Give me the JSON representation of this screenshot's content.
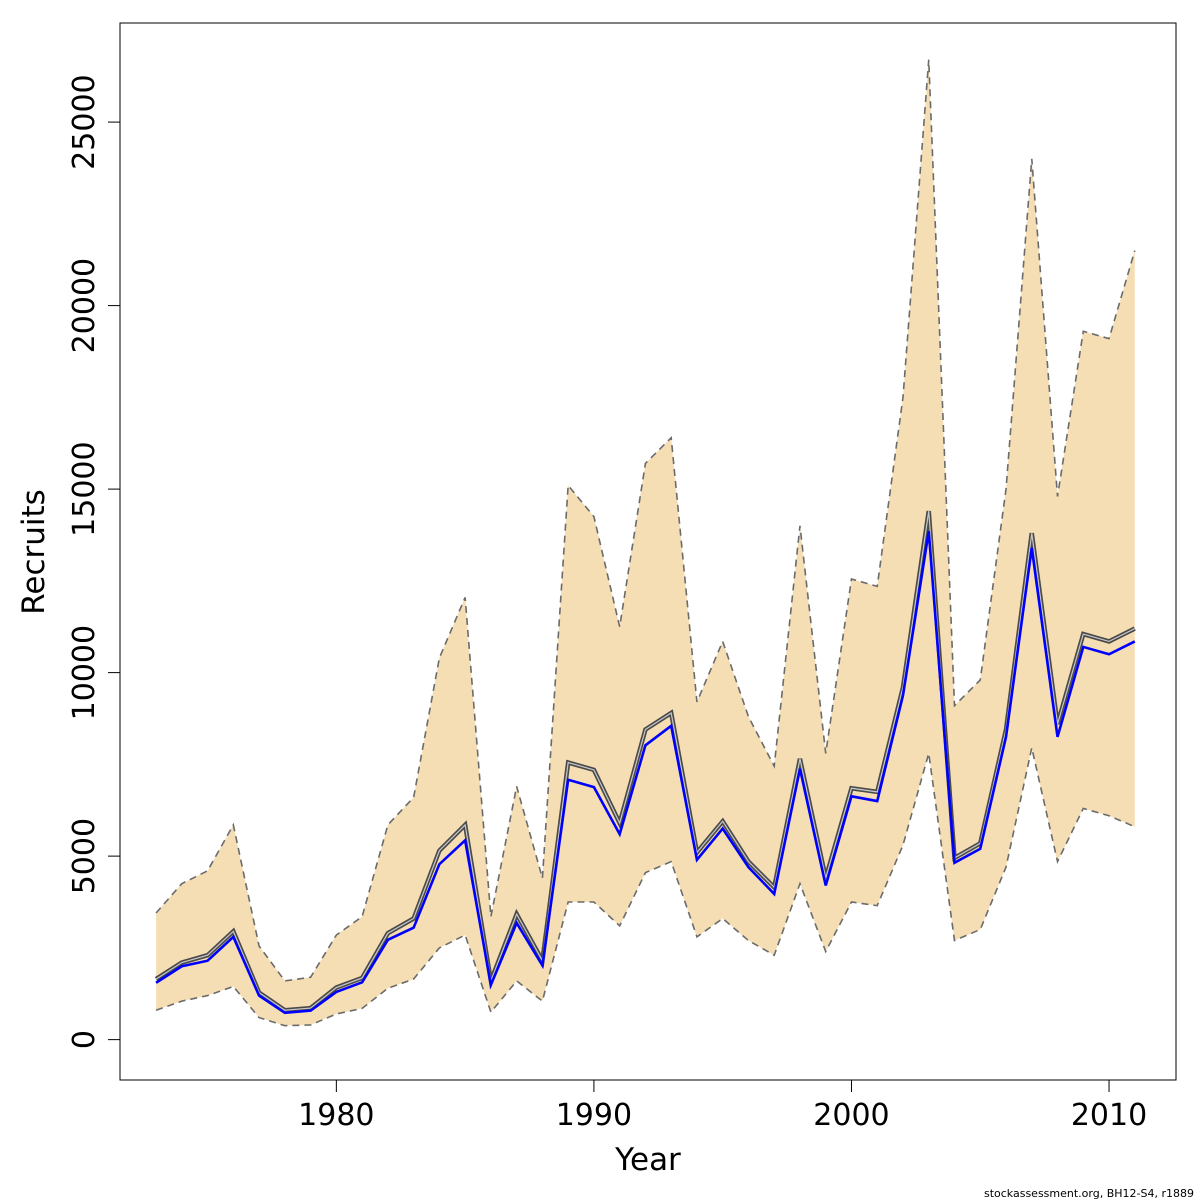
{
  "chart_data": {
    "type": "line",
    "xlabel": "Year",
    "ylabel": "Recruits",
    "xlim": [
      1971.6,
      1975.7
    ],
    "x_range": [
      1971.6,
      2012.6
    ],
    "y_range": [
      -1100,
      27700
    ],
    "x_ticks": [
      "1980",
      "1990",
      "2000",
      "2010"
    ],
    "y_ticks": [
      "0",
      "5000",
      "10000",
      "15000",
      "20000",
      "25000"
    ],
    "grid": false,
    "x": [
      1973,
      1974,
      1975,
      1976,
      1977,
      1978,
      1979,
      1980,
      1981,
      1982,
      1983,
      1984,
      1985,
      1986,
      1987,
      1988,
      1989,
      1990,
      1991,
      1992,
      1993,
      1994,
      1995,
      1996,
      1997,
      1998,
      1999,
      2000,
      2001,
      2002,
      2003,
      2004,
      2005,
      2006,
      2007,
      2008,
      2009,
      2010,
      2011
    ],
    "series": [
      {
        "role": "upper-interval",
        "color": "#6b6b6b",
        "style": "dashed",
        "values": [
          3450,
          4250,
          4600,
          5850,
          2550,
          1600,
          1700,
          2850,
          3350,
          5850,
          6600,
          10400,
          12050,
          3350,
          6900,
          4400,
          15100,
          14250,
          11250,
          15700,
          16400,
          9200,
          10850,
          8800,
          7450,
          14000,
          7800,
          12550,
          12350,
          17500,
          26700,
          9100,
          9800,
          15000,
          24000,
          14800,
          19300,
          19100,
          21500
        ]
      },
      {
        "role": "lower-interval",
        "color": "#6b6b6b",
        "style": "dashed",
        "values": [
          800,
          1050,
          1200,
          1450,
          600,
          380,
          400,
          700,
          850,
          1400,
          1650,
          2500,
          2850,
          750,
          1600,
          1050,
          3750,
          3750,
          3100,
          4550,
          4850,
          2800,
          3300,
          2700,
          2300,
          4250,
          2400,
          3750,
          3650,
          5300,
          7800,
          2700,
          3000,
          4700,
          7950,
          4850,
          6300,
          6100,
          5800
        ]
      },
      {
        "role": "estimate",
        "color": "#4a4a4a",
        "style": "solid",
        "values": [
          1650,
          2100,
          2300,
          2950,
          1280,
          800,
          860,
          1420,
          1680,
          2900,
          3300,
          5150,
          5850,
          1600,
          3420,
          2150,
          7550,
          7350,
          5900,
          8450,
          8900,
          5100,
          5950,
          4850,
          4150,
          7650,
          4400,
          6850,
          6750,
          9600,
          14400,
          4950,
          5350,
          8450,
          13800,
          8600,
          11050,
          10850,
          11200
        ]
      },
      {
        "role": "estimate-alt",
        "color": "#0000ff",
        "style": "solid",
        "values": [
          1550,
          2000,
          2150,
          2800,
          1200,
          730,
          790,
          1300,
          1560,
          2720,
          3050,
          4780,
          5430,
          1490,
          3180,
          2020,
          7080,
          6880,
          5600,
          8020,
          8550,
          4900,
          5750,
          4700,
          3970,
          7380,
          4200,
          6630,
          6500,
          9380,
          13850,
          4820,
          5200,
          8250,
          13400,
          8250,
          10700,
          10500,
          10850
        ]
      }
    ],
    "colors": {
      "band_fill": "#f5deb3",
      "frame": "#000000"
    }
  },
  "footer": {
    "text": "stockassessment.org, BH12-S4, r1889"
  }
}
